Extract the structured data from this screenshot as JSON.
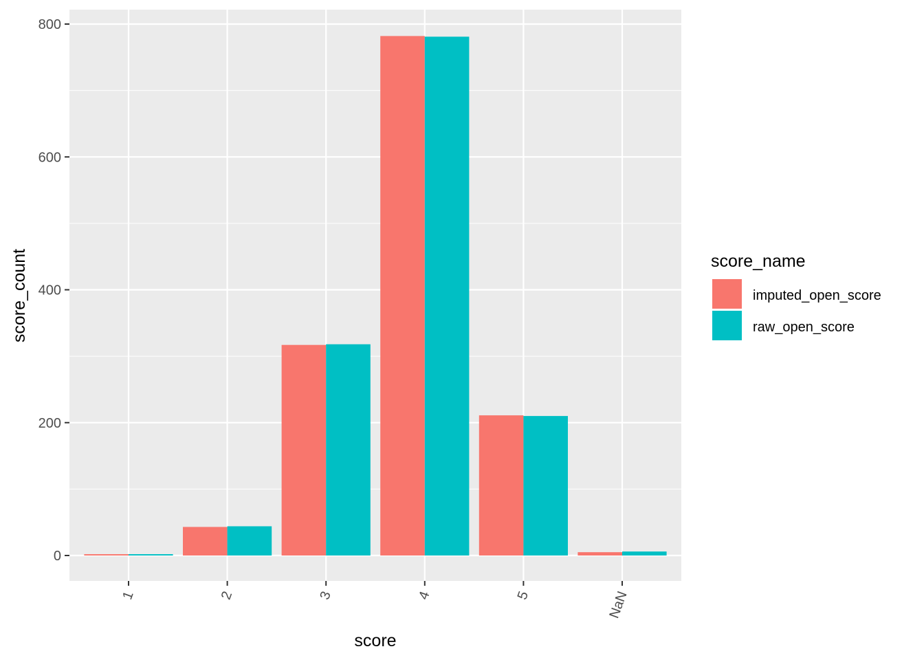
{
  "chart_data": {
    "type": "bar",
    "xlabel": "score",
    "ylabel": "score_count",
    "categories": [
      "1",
      "2",
      "3",
      "4",
      "5",
      "NaN"
    ],
    "series": [
      {
        "name": "imputed_open_score",
        "color": "#F8766D",
        "values": [
          2,
          43,
          317,
          782,
          211,
          5
        ]
      },
      {
        "name": "raw_open_score",
        "color": "#00BFC4",
        "values": [
          2,
          44,
          318,
          781,
          210,
          6
        ]
      }
    ],
    "ylim": [
      -39,
      800
    ],
    "yticks": [
      0,
      200,
      400,
      600,
      800
    ],
    "y_minor_ticks": [
      100,
      300,
      500,
      700
    ],
    "legend": {
      "title": "score_name",
      "placement": "right"
    },
    "grid": true,
    "panel_background": "#EBEBEB",
    "x_tick_rotation": "angled"
  }
}
